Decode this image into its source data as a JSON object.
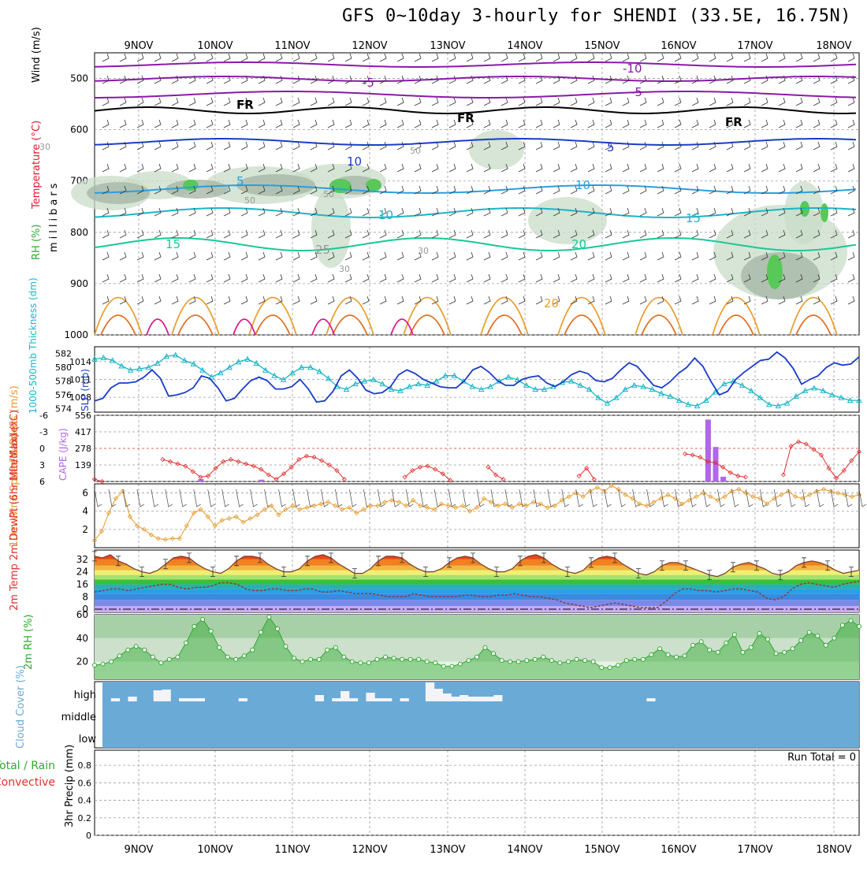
{
  "title": "GFS 0~10day 3-hourly for SHENDI (33.5E, 16.75N)",
  "colors": {
    "temperature_label": "#e0182e",
    "wind_label": "#000000",
    "rh_label": "#2fa82f",
    "thickness": "#19b6c8",
    "slp": "#1a3cc8",
    "lifted_index": "#e03030",
    "cape": "#b266e8",
    "wind_speed": "#e89a2a",
    "cloud_bg": "#6aaad6",
    "rain_total": "#2fa82f",
    "rain_convective": "#e03030"
  },
  "chart_data": [
    {
      "type": "contour",
      "panel": "vertical-profile",
      "x_ticks": [
        "9NOV",
        "10NOV",
        "11NOV",
        "12NOV",
        "13NOV",
        "14NOV",
        "15NOV",
        "16NOV",
        "17NOV",
        "18NOV"
      ],
      "ylabel": "millibars",
      "ylabel_parts": {
        "wind": "Wind (m/s)",
        "temperature": "Temperature (°C)",
        "rh": "RH (%)"
      },
      "y_ticks": [
        500,
        600,
        700,
        800,
        900,
        1000
      ],
      "ylim": [
        1000,
        450
      ],
      "contour_labels": [
        "-10",
        "-5",
        "-5",
        "FR",
        "FR",
        "FR",
        "10",
        "5",
        "5",
        "10",
        "10",
        "15",
        "15",
        "20",
        "20",
        "25",
        "30",
        "30",
        "30",
        "50",
        "50",
        "50"
      ]
    },
    {
      "type": "line",
      "panel": "slp-thickness",
      "ylabel_left": "1000-500mb Thickness (dm)",
      "ylabel_right": "SLP (mb)",
      "left_ticks": [
        574,
        576,
        578,
        580,
        582
      ],
      "left_ylim": [
        573.5,
        583
      ],
      "right_ticks": [
        1008,
        1011,
        1014
      ],
      "right_ylim": [
        1005.5,
        1016.5
      ],
      "series": [
        {
          "name": "1000-500mb Thickness",
          "axis": "left",
          "values": [
            581.2,
            581.4,
            581.0,
            580.2,
            579.6,
            579.8,
            580.0,
            580.6,
            581.6,
            581.8,
            581.0,
            580.5,
            579.6,
            578.6,
            579.2,
            580.0,
            580.8,
            581.2,
            580.6,
            579.6,
            578.8,
            578.2,
            579.2,
            580.0,
            580.0,
            579.4,
            578.4,
            577.2,
            576.8,
            577.6,
            578.0,
            578.2,
            577.6,
            576.8,
            576.6,
            577.2,
            577.6,
            577.4,
            578.0,
            578.8,
            578.8,
            578.0,
            577.2,
            576.8,
            577.2,
            578.0,
            578.6,
            578.2,
            577.4,
            576.8,
            576.8,
            577.2,
            577.8,
            578.0,
            577.4,
            576.8,
            575.6,
            574.8,
            575.6,
            576.8,
            577.4,
            577.2,
            576.8,
            576.2,
            575.8,
            575.2,
            574.6,
            574.4,
            575.2,
            576.4,
            577.6,
            578.0,
            577.4,
            576.6,
            575.6,
            574.6,
            574.4,
            574.8,
            575.8,
            576.6,
            577.0,
            576.6,
            576.0,
            575.6,
            575.2,
            575.2
          ]
        },
        {
          "name": "SLP",
          "axis": "right",
          "values": [
            1007.4,
            1007.8,
            1009.6,
            1010.4,
            1010.4,
            1010.6,
            1011.4,
            1012.6,
            1011.2,
            1008.2,
            1008.4,
            1008.8,
            1009.6,
            1011.6,
            1011.2,
            1009.6,
            1007.4,
            1007.8,
            1009.4,
            1010.8,
            1011.4,
            1010.8,
            1009.4,
            1009.4,
            1009.8,
            1011.0,
            1009.4,
            1007.2,
            1007.4,
            1009.0,
            1011.6,
            1012.6,
            1011.2,
            1009.2,
            1008.6,
            1008.8,
            1009.8,
            1011.8,
            1012.6,
            1012.0,
            1011.0,
            1010.4,
            1009.8,
            1009.6,
            1009.6,
            1010.8,
            1012.6,
            1013.2,
            1012.2,
            1010.8,
            1010.0,
            1010.0,
            1011.0,
            1011.4,
            1011.6,
            1010.4,
            1009.8,
            1010.6,
            1011.8,
            1012.4,
            1012.0,
            1010.8,
            1010.6,
            1011.2,
            1012.6,
            1013.8,
            1013.2,
            1011.6,
            1010.0,
            1009.6,
            1010.6,
            1012.0,
            1013.0,
            1014.6,
            1013.2,
            1010.6,
            1008.4,
            1009.0,
            1011.0,
            1012.2,
            1013.2,
            1014.2,
            1014.4,
            1015.6,
            1014.6,
            1012.8,
            1010.2,
            1011.0,
            1011.6,
            1013.0,
            1013.8,
            1013.4,
            1013.6,
            1014.8
          ]
        }
      ]
    },
    {
      "type": "bar+line",
      "panel": "lifted-index-cape",
      "ylabel_left": "Lifted Index",
      "ylabel_right": "CAPE (J/kg)",
      "li_ticks": [
        "-6",
        "-3",
        "0",
        "3",
        "6"
      ],
      "li_ylim": [
        6,
        -6
      ],
      "cape_ticks": [
        "556",
        "417",
        "278",
        "139"
      ],
      "cape_ylim": [
        0,
        556
      ],
      "lifted_index": [
        5.6,
        6.0,
        null,
        null,
        null,
        null,
        null,
        null,
        null,
        2.0,
        2.4,
        2.8,
        3.2,
        4.2,
        5.2,
        5.0,
        3.6,
        2.4,
        2.0,
        2.4,
        2.8,
        3.2,
        3.8,
        4.8,
        5.6,
        4.6,
        3.4,
        2.0,
        1.4,
        1.6,
        2.2,
        3.0,
        4.0,
        5.6,
        null,
        null,
        null,
        null,
        null,
        null,
        null,
        5.2,
        4.0,
        3.4,
        3.2,
        3.8,
        4.6,
        5.8,
        null,
        null,
        null,
        null,
        3.4,
        4.8,
        5.6,
        null,
        null,
        null,
        null,
        null,
        null,
        null,
        null,
        null,
        5.0,
        3.6,
        5.6,
        null,
        null,
        null,
        null,
        null,
        null,
        null,
        null,
        null,
        null,
        null,
        1.0,
        1.2,
        1.6,
        2.4,
        2.6,
        3.4,
        4.4,
        5.0,
        5.2,
        null,
        null,
        null,
        null,
        4.8,
        -0.4,
        -1.2,
        -0.8,
        0.2,
        1.2,
        3.6,
        5.4,
        4.0,
        2.2,
        0.6
      ],
      "cape": [
        {
          "i": 14,
          "v": 20
        },
        {
          "i": 22,
          "v": 15
        },
        {
          "i": 81,
          "v": 520
        },
        {
          "i": 82,
          "v": 290
        },
        {
          "i": 83,
          "v": 40
        }
      ]
    },
    {
      "type": "line",
      "panel": "wind-10m",
      "ylabel": "10m Wind Speed & Barbs (m/s)",
      "y_ticks": [
        2,
        4,
        6
      ],
      "ylim": [
        0,
        7
      ],
      "values": [
        0.8,
        1.8,
        3.8,
        5.4,
        6.2,
        3.4,
        2.4,
        2.0,
        1.4,
        1.0,
        0.9,
        1.0,
        1.0,
        2.4,
        3.8,
        4.2,
        3.4,
        2.4,
        3.0,
        3.2,
        3.4,
        2.8,
        3.2,
        3.6,
        4.2,
        4.6,
        3.6,
        4.2,
        4.6,
        4.2,
        4.4,
        4.6,
        4.8,
        5.0,
        4.6,
        4.2,
        4.4,
        3.8,
        4.2,
        4.6,
        4.6,
        5.0,
        5.2,
        5.0,
        4.6,
        5.2,
        4.6,
        4.4,
        4.2,
        4.8,
        4.6,
        4.4,
        4.6,
        4.0,
        4.4,
        5.4,
        5.0,
        4.6,
        4.8,
        4.4,
        4.8,
        4.6,
        5.0,
        4.8,
        4.4,
        4.6,
        5.2,
        5.6,
        6.0,
        5.6,
        6.2,
        6.6,
        6.2,
        6.8,
        6.4,
        5.8,
        5.4,
        4.8,
        4.6,
        5.0,
        5.4,
        5.8,
        5.4,
        4.8,
        5.2,
        5.6,
        6.0,
        5.6,
        5.2,
        5.6,
        6.2,
        6.4,
        6.0,
        5.6,
        5.4,
        4.8,
        5.4,
        5.8,
        6.2,
        5.6,
        5.4,
        5.8,
        6.2,
        6.4,
        6.2,
        6.0,
        5.8,
        5.6,
        5.8
      ]
    },
    {
      "type": "area+line",
      "panel": "temp-dewpoint",
      "ylabel": "2m Temp 2m DewPt (6hr Min/Max) (°C)",
      "y_ticks": [
        0,
        8,
        16,
        24,
        32
      ],
      "ylim": [
        -2,
        38
      ],
      "temperature": [
        34,
        33,
        35,
        31,
        29,
        26,
        24,
        23,
        25,
        29,
        33,
        34,
        33,
        29,
        26,
        24,
        23,
        26,
        31,
        34,
        34,
        33,
        29,
        26,
        24,
        24,
        26,
        31,
        34,
        35,
        33,
        29,
        26,
        23,
        23,
        26,
        31,
        34,
        34,
        33,
        29,
        26,
        24,
        24,
        26,
        30,
        33,
        34,
        33,
        29,
        26,
        24,
        24,
        26,
        31,
        34,
        35,
        33,
        29,
        26,
        24,
        23,
        25,
        30,
        33,
        34,
        33,
        29,
        26,
        23,
        22,
        24,
        28,
        30,
        30,
        28,
        26,
        24,
        22,
        21,
        23,
        27,
        29,
        30,
        28,
        26,
        23,
        22,
        24,
        28,
        30,
        31,
        30,
        28,
        25,
        23,
        24,
        25
      ],
      "dewpoint": [
        11,
        12,
        13,
        13,
        12,
        13,
        14,
        15,
        16,
        16,
        14,
        13,
        14,
        14,
        15,
        17,
        17,
        16,
        13,
        12,
        12,
        13,
        13,
        12,
        12,
        13,
        13,
        11,
        11,
        12,
        11,
        10,
        10,
        10,
        9,
        8,
        8,
        8,
        10,
        9,
        8,
        8,
        8,
        8,
        9,
        9,
        8,
        8,
        9,
        9,
        10,
        9,
        8,
        8,
        7,
        6,
        4,
        3,
        2,
        1,
        2,
        3,
        4,
        3,
        2,
        1,
        1,
        1,
        5,
        10,
        13,
        13,
        12,
        12,
        11,
        12,
        13,
        13,
        12,
        11,
        7,
        6,
        8,
        13,
        16,
        17,
        16,
        15,
        14,
        16,
        17,
        18
      ]
    },
    {
      "type": "area+line",
      "panel": "rh-2m",
      "ylabel": "2m RH (%)",
      "y_ticks": [
        20,
        40,
        60
      ],
      "ylim": [
        5,
        60
      ],
      "values": [
        17,
        18,
        20,
        25,
        30,
        33,
        30,
        24,
        19,
        22,
        24,
        36,
        50,
        56,
        46,
        32,
        24,
        22,
        25,
        30,
        45,
        58,
        48,
        33,
        23,
        20,
        22,
        22,
        30,
        32,
        24,
        20,
        19,
        19,
        22,
        24,
        23,
        22,
        22,
        22,
        20,
        19,
        16,
        16,
        18,
        21,
        24,
        32,
        27,
        21,
        20,
        20,
        21,
        22,
        24,
        21,
        19,
        20,
        22,
        21,
        20,
        15,
        15,
        17,
        21,
        22,
        22,
        26,
        31,
        26,
        24,
        25,
        34,
        37,
        30,
        28,
        36,
        43,
        28,
        32,
        44,
        39,
        27,
        28,
        31,
        38,
        45,
        42,
        34,
        40,
        51,
        55,
        50
      ]
    },
    {
      "type": "bar",
      "panel": "cloud-cover",
      "ylabel": "Cloud Cover (%)",
      "y_ticks": [
        "high",
        "middle",
        "low"
      ],
      "high_cover": [
        0,
        4,
        0,
        6,
        0,
        0,
        14,
        15,
        0,
        4,
        4,
        4,
        0,
        0,
        0,
        0,
        4,
        0,
        0,
        0,
        0,
        0,
        0,
        0,
        0,
        8,
        0,
        4,
        13,
        4,
        0,
        11,
        4,
        4,
        0,
        4,
        0,
        0,
        24,
        16,
        10,
        6,
        8,
        6,
        6,
        6,
        8,
        0,
        0,
        0,
        0,
        0,
        0,
        0,
        0,
        0,
        0,
        0,
        0,
        0,
        0,
        0,
        0,
        0,
        4,
        0,
        0,
        0,
        0,
        0,
        0,
        0,
        0,
        0,
        0,
        0,
        0,
        0,
        0,
        0,
        0,
        0,
        0,
        0,
        0,
        0,
        0,
        0,
        0
      ]
    },
    {
      "type": "bar",
      "panel": "precip-3hr",
      "ylabel": "3hr Precip (mm)",
      "legend": "Total / Rain Convective",
      "legend_parts": {
        "total": "Total / Rain",
        "convective": "Convective"
      },
      "y_ticks": [
        "0",
        "0.2",
        "0.4",
        "0.6",
        "0.8"
      ],
      "ylim": [
        0,
        0.9
      ],
      "run_total": "Run Total = 0",
      "values": []
    }
  ]
}
